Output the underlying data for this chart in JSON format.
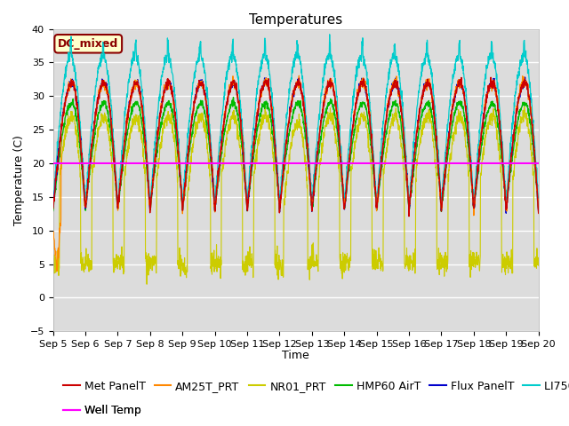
{
  "title": "Temperatures",
  "xlabel": "Time",
  "ylabel": "Temperature (C)",
  "ylim": [
    -5,
    40
  ],
  "plot_bg_color": "#dcdcdc",
  "grid_color": "white",
  "annotation_text": "DC_mixed",
  "annotation_box_color": "#ffffcc",
  "annotation_border_color": "#8B0000",
  "annotation_text_color": "#8B0000",
  "well_temp_value": 20,
  "series_colors": {
    "Met PanelT": "#cc0000",
    "AM25T_PRT": "#ff8800",
    "NR01_PRT": "#cccc00",
    "HMP60 AirT": "#00bb00",
    "Flux PanelT": "#0000cc",
    "LI7500 T": "#00cccc",
    "Well Temp": "#ff00ff"
  },
  "tick_labels": [
    "Sep 5",
    "Sep 6",
    "Sep 7",
    "Sep 8",
    "Sep 9",
    "Sep 10",
    "Sep 11",
    "Sep 12",
    "Sep 13",
    "Sep 14",
    "Sep 15",
    "Sep 16",
    "Sep 17",
    "Sep 18",
    "Sep 19",
    "Sep 20"
  ],
  "legend_fontsize": 9,
  "title_fontsize": 11
}
